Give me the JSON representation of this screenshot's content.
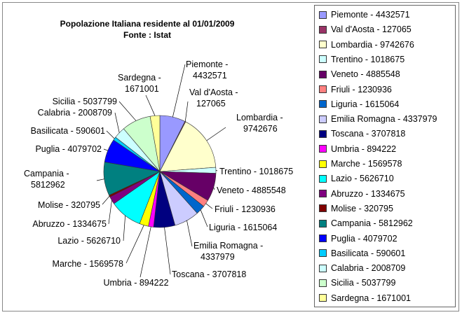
{
  "chart_data": {
    "type": "pie",
    "title": "Popolazione Italiana residente al 01/01/2009",
    "subtitle": "Fonte  : Istat",
    "slices": [
      {
        "name": "Piemonte",
        "value": 4432571,
        "color": "#9999ff",
        "label": "Piemonte - 4432571",
        "legend": "Piemonte - 4432571"
      },
      {
        "name": "Val d'Aosta",
        "value": 127065,
        "color": "#993366",
        "label": "Val d'Aosta - 127065",
        "legend": "Val d'Aosta - 127065"
      },
      {
        "name": "Lombardia",
        "value": 9742676,
        "color": "#ffffcc",
        "label": "Lombardia - 9742676",
        "legend": "Lombardia - 9742676"
      },
      {
        "name": "Trentino",
        "value": 1018675,
        "color": "#ccffff",
        "label": "Trentino - 1018675",
        "legend": "Trentino - 1018675"
      },
      {
        "name": "Veneto",
        "value": 4885548,
        "color": "#660066",
        "label": "Veneto - 4885548",
        "legend": "Veneto - 4885548"
      },
      {
        "name": "Friuli",
        "value": 1230936,
        "color": "#ff8080",
        "label": "Friuli - 1230936",
        "legend": "Friuli - 1230936"
      },
      {
        "name": "Liguria",
        "value": 1615064,
        "color": "#0066cc",
        "label": "Liguria - 1615064",
        "legend": "Liguria - 1615064"
      },
      {
        "name": "Emilia Romagna",
        "value": 4337979,
        "color": "#ccccff",
        "label": "Emilia Romagna - 4337979",
        "legend": "Emilia Romagna - 4337979"
      },
      {
        "name": "Toscana",
        "value": 3707818,
        "color": "#000080",
        "label": "Toscana - 3707818",
        "legend": "Toscana - 3707818"
      },
      {
        "name": "Umbria",
        "value": 894222,
        "color": "#ff00ff",
        "label": "Umbria - 894222",
        "legend": "Umbria - 894222"
      },
      {
        "name": "Marche",
        "value": 1569578,
        "color": "#ffff00",
        "label": "Marche - 1569578",
        "legend": "Marche - 1569578"
      },
      {
        "name": "Lazio",
        "value": 5626710,
        "color": "#00ffff",
        "label": "Lazio - 5626710",
        "legend": "Lazio - 5626710"
      },
      {
        "name": "Abruzzo",
        "value": 1334675,
        "color": "#800080",
        "label": "Abruzzo - 1334675",
        "legend": "Abruzzo - 1334675"
      },
      {
        "name": "Molise",
        "value": 320795,
        "color": "#800000",
        "label": "Molise - 320795",
        "legend": "Molise - 320795"
      },
      {
        "name": "Campania",
        "value": 5812962,
        "color": "#008080",
        "label": "Campania - 5812962",
        "legend": "Campania - 5812962"
      },
      {
        "name": "Puglia",
        "value": 4079702,
        "color": "#0000ff",
        "label": "Puglia - 4079702",
        "legend": "Puglia - 4079702"
      },
      {
        "name": "Basilicata",
        "value": 590601,
        "color": "#00ccff",
        "label": "Basilicata - 590601",
        "legend": "Basilicata - 590601"
      },
      {
        "name": "Calabria",
        "value": 2008709,
        "color": "#ccffff",
        "label": "Calabria - 2008709",
        "legend": "Calabria - 2008709"
      },
      {
        "name": "Sicilia",
        "value": 5037799,
        "color": "#ccffcc",
        "label": "Sicilia - 5037799",
        "legend": "Sicilia - 5037799"
      },
      {
        "name": "Sardegna",
        "value": 1671001,
        "color": "#ffff99",
        "label": "Sardegna - 1671001",
        "legend": "Sardegna - 1671001"
      }
    ],
    "legend_position": "right",
    "start": "top",
    "direction": "clockwise"
  }
}
